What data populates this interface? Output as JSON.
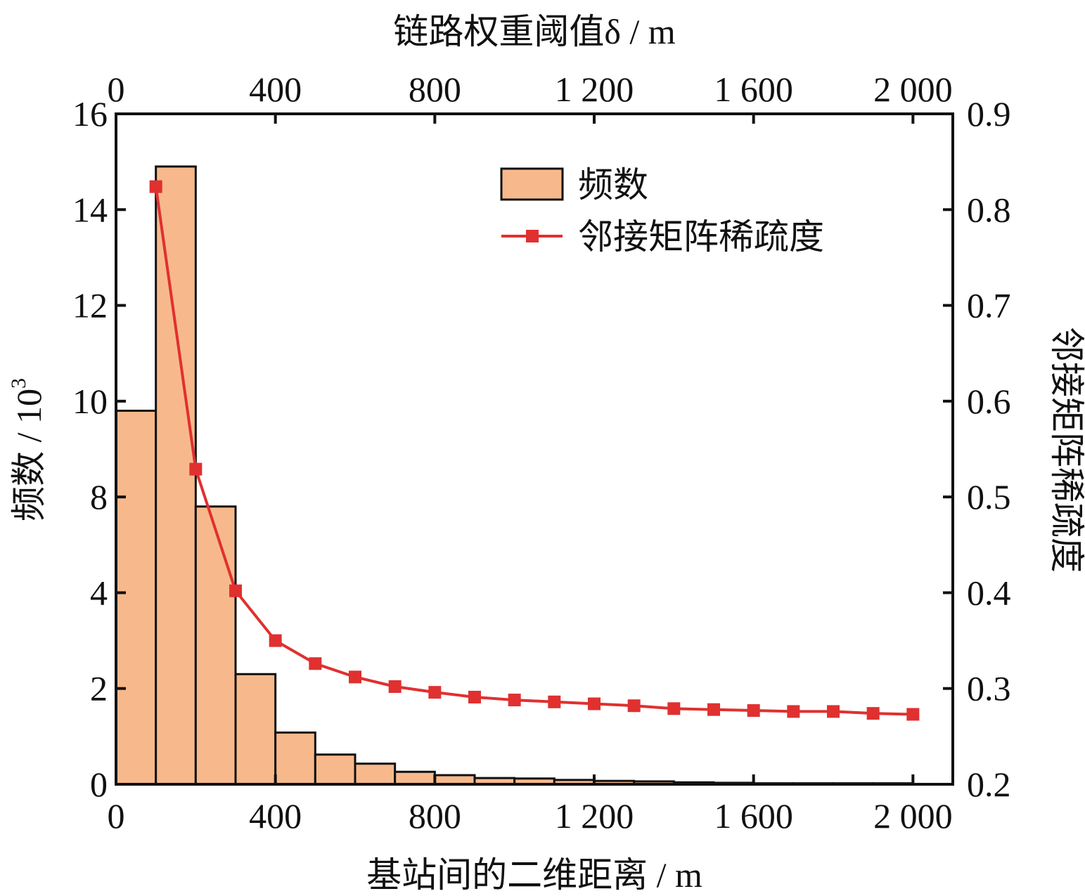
{
  "chart_data": {
    "type": "bar",
    "title": "",
    "top_xlabel": "链路权重阈值δ / m",
    "xlabel": "基站间的二维距离 / m",
    "ylabel": "频数 / 10",
    "ylabel_sup": "3",
    "y2label": "邻接矩阵稀疏度",
    "xlim": [
      0,
      2100
    ],
    "x_ticks": [
      {
        "value": 0,
        "label": "0"
      },
      {
        "value": 400,
        "label": "400"
      },
      {
        "value": 800,
        "label": "800"
      },
      {
        "value": 1200,
        "label": "1 200"
      },
      {
        "value": 1600,
        "label": "1 600"
      },
      {
        "value": 2000,
        "label": "2 000"
      }
    ],
    "y_ticks": [
      {
        "value": 0,
        "label": "0"
      },
      {
        "value": 2,
        "label": "2"
      },
      {
        "value": 4,
        "label": "4"
      },
      {
        "value": 8,
        "label": "8"
      },
      {
        "value": 10,
        "label": "10"
      },
      {
        "value": 12,
        "label": "12"
      },
      {
        "value": 14,
        "label": "14"
      },
      {
        "value": 16,
        "label": "16"
      }
    ],
    "y2lim": [
      0.2,
      0.9
    ],
    "y2_ticks": [
      {
        "value": 0.2,
        "label": "0.2"
      },
      {
        "value": 0.3,
        "label": "0.3"
      },
      {
        "value": 0.4,
        "label": "0.4"
      },
      {
        "value": 0.5,
        "label": "0.5"
      },
      {
        "value": 0.6,
        "label": "0.6"
      },
      {
        "value": 0.7,
        "label": "0.7"
      },
      {
        "value": 0.8,
        "label": "0.8"
      },
      {
        "value": 0.9,
        "label": "0.9"
      }
    ],
    "legend_position": "top-right",
    "series": [
      {
        "name": "频数",
        "type": "bar",
        "axis": "left",
        "color": "#f7b98b",
        "bin_width": 100,
        "bin_starts": [
          0,
          100,
          200,
          300,
          400,
          500,
          600,
          700,
          800,
          900,
          1000,
          1100,
          1200,
          1300,
          1400,
          1500,
          1600,
          1700,
          1800,
          1900
        ],
        "values": [
          9.8,
          14.9,
          7.6,
          2.3,
          1.08,
          0.62,
          0.43,
          0.26,
          0.19,
          0.13,
          0.12,
          0.09,
          0.07,
          0.06,
          0.04,
          0.03,
          0.02,
          0.02,
          0.02,
          0.02
        ]
      },
      {
        "name": "邻接矩阵稀疏度",
        "type": "line",
        "axis": "right",
        "color": "#e03030",
        "marker": "square",
        "x": [
          100,
          200,
          300,
          400,
          500,
          600,
          700,
          800,
          900,
          1000,
          1100,
          1200,
          1300,
          1400,
          1500,
          1600,
          1700,
          1800,
          1900,
          2000
        ],
        "values": [
          0.824,
          0.529,
          0.402,
          0.35,
          0.326,
          0.312,
          0.302,
          0.296,
          0.291,
          0.288,
          0.286,
          0.284,
          0.282,
          0.279,
          0.278,
          0.277,
          0.276,
          0.276,
          0.274,
          0.273
        ]
      }
    ]
  }
}
